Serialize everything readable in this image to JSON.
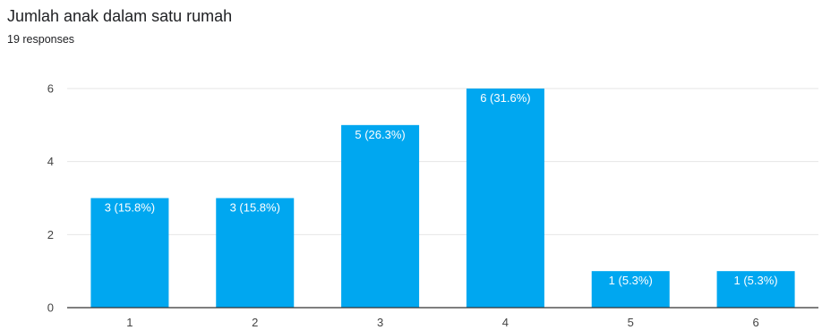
{
  "header": {
    "title": "Jumlah anak dalam satu rumah",
    "responses": "19 responses"
  },
  "chart_data": {
    "type": "bar",
    "categories": [
      "1",
      "2",
      "3",
      "4",
      "5",
      "6"
    ],
    "values": [
      3,
      3,
      5,
      6,
      1,
      1
    ],
    "data_labels": [
      "3 (15.8%)",
      "3 (15.8%)",
      "5 (26.3%)",
      "6 (31.6%)",
      "1 (5.3%)",
      "1 (5.3%)"
    ],
    "title": "Jumlah anak dalam satu rumah",
    "subtitle": "19 responses",
    "xlabel": "",
    "ylabel": "",
    "ylim": [
      0,
      6
    ],
    "yticks": [
      0,
      2,
      4,
      6
    ],
    "grid": true,
    "bar_color": "#00A7F0"
  }
}
